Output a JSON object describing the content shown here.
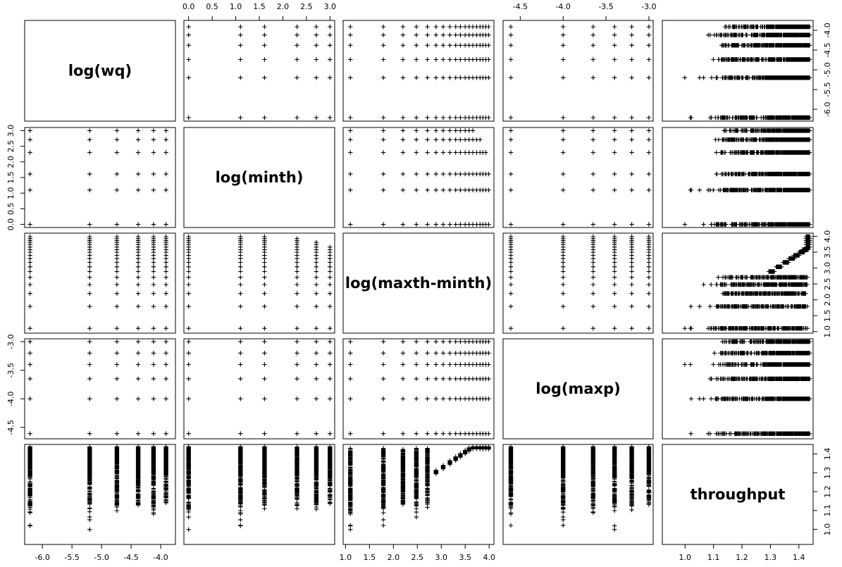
{
  "chart_data": {
    "type": "scatter",
    "variables": [
      {
        "id": "wq",
        "label": "log(wq)",
        "ticks": [
          "-6.0",
          "-5.5",
          "-5.0",
          "-4.5",
          "-4.0"
        ],
        "range": [
          -6.3,
          -3.75
        ],
        "levels": [
          -6.21,
          -5.2,
          -4.74,
          -4.38,
          -4.12,
          -3.91
        ]
      },
      {
        "id": "minth",
        "label": "log(minth)",
        "ticks": [
          "0.0",
          "0.5",
          "1.0",
          "1.5",
          "2.0",
          "2.5",
          "3.0"
        ],
        "range": [
          -0.1,
          3.1
        ],
        "levels": [
          0.0,
          1.1,
          1.61,
          2.3,
          2.71,
          3.0
        ]
      },
      {
        "id": "maxth",
        "label": "log(maxth-minth)",
        "ticks": [
          "1.0",
          "1.5",
          "2.0",
          "2.5",
          "3.0",
          "3.5",
          "4.0"
        ],
        "range": [
          0.95,
          4.1
        ],
        "levels": [
          1.1,
          1.79,
          2.2,
          2.48,
          2.71,
          2.89,
          3.04,
          3.18,
          3.3,
          3.4,
          3.5,
          3.58,
          3.66,
          3.74,
          3.81,
          3.87,
          3.93,
          3.99
        ]
      },
      {
        "id": "maxp",
        "label": "log(maxp)",
        "ticks": [
          "-4.5",
          "-4.0",
          "-3.5",
          "-3.0"
        ],
        "range": [
          -4.7,
          -2.95
        ],
        "levels": [
          -4.61,
          -4.0,
          -3.65,
          -3.4,
          -3.2,
          -3.0
        ]
      },
      {
        "id": "throughput",
        "label": "throughput",
        "ticks": [
          "1.0",
          "1.1",
          "1.2",
          "1.3",
          "1.4"
        ],
        "range": [
          0.92,
          1.45
        ]
      }
    ],
    "tick_sides": {
      "top": [
        1,
        3
      ],
      "bottom": [
        0,
        2,
        4
      ],
      "left": [
        1,
        3
      ],
      "right": [
        0,
        2,
        4
      ]
    },
    "grid": false,
    "legend": "none"
  }
}
